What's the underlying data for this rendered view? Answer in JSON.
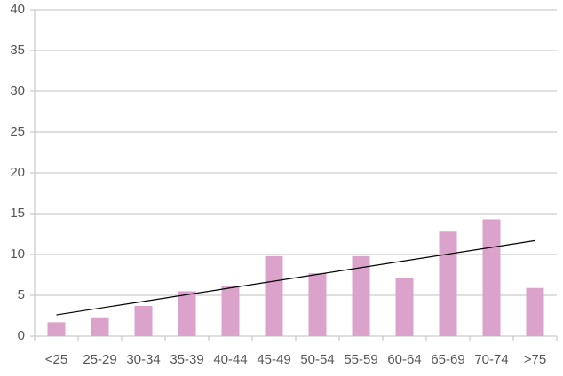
{
  "chart_data": {
    "type": "bar",
    "categories": [
      "<25",
      "25-29",
      "30-34",
      "35-39",
      "40-44",
      "45-49",
      "50-54",
      "55-59",
      "60-64",
      "65-69",
      "70-74",
      ">75"
    ],
    "values": [
      1.7,
      2.2,
      3.7,
      5.5,
      6.1,
      9.8,
      7.7,
      9.8,
      7.1,
      12.8,
      14.3,
      5.9
    ],
    "color": "#dba3cc",
    "trendline": {
      "start": 2.6,
      "end": 11.7,
      "color": "#000000"
    },
    "ylim": [
      0,
      40
    ],
    "yticks": [
      0,
      5,
      10,
      15,
      20,
      25,
      30,
      35,
      40
    ],
    "grid": true
  }
}
